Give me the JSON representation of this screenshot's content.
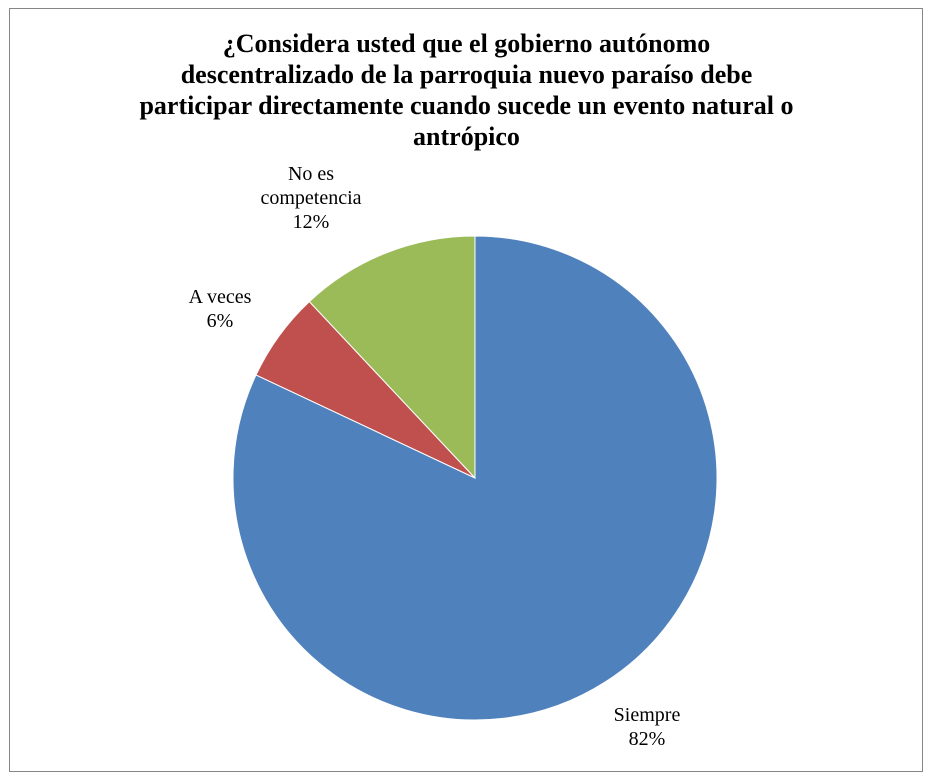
{
  "chart_data": {
    "type": "pie",
    "title_lines": [
      "¿Considera usted que el gobierno autónomo",
      "descentralizado de la parroquia nuevo paraíso debe",
      "participar directamente cuando sucede un evento natural o",
      "antrópico"
    ],
    "slices": [
      {
        "label_lines": [
          "Siempre"
        ],
        "value": 82,
        "value_label": "82%",
        "color": "#4F81BD"
      },
      {
        "label_lines": [
          "A veces"
        ],
        "value": 6,
        "value_label": "6%",
        "color": "#C0504D"
      },
      {
        "label_lines": [
          "No es",
          "competencia"
        ],
        "value": 12,
        "value_label": "12%",
        "color": "#9BBB59"
      }
    ],
    "start": "12 o'clock",
    "direction": "clockwise",
    "legend": "none"
  }
}
